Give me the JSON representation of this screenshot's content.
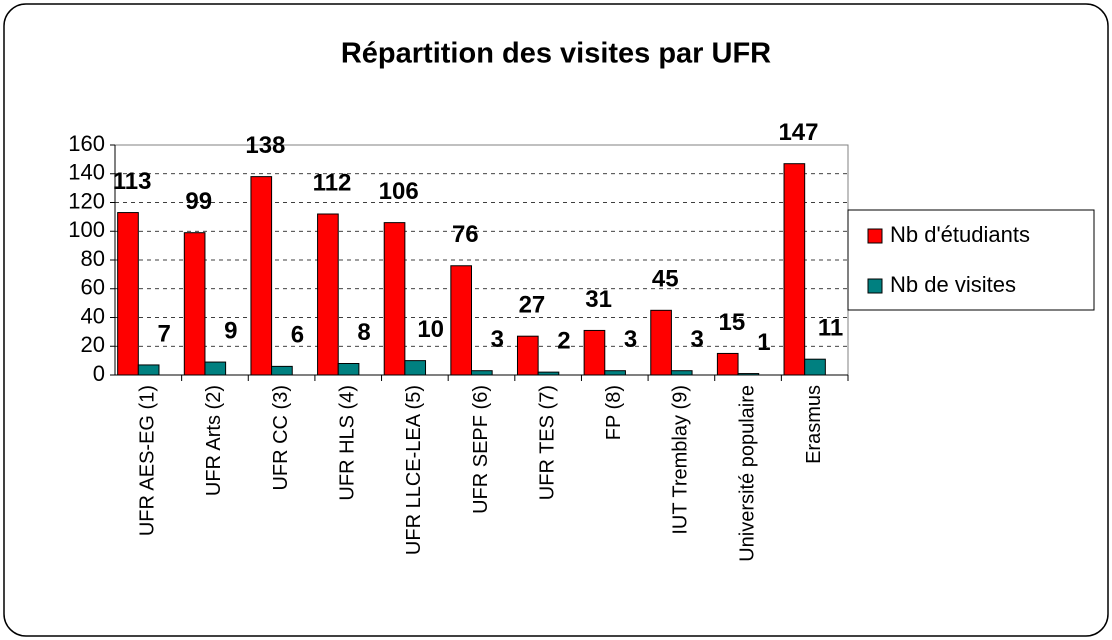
{
  "chart_data": {
    "type": "bar",
    "title": "Répartition des visites par UFR",
    "categories": [
      "UFR AES-EG (1)",
      "UFR Arts (2)",
      "UFR CC (3)",
      "UFR HLS (4)",
      "UFR LLCE-LEA (5)",
      "UFR SEPF (6)",
      "UFR TES (7)",
      "FP (8)",
      "IUT Tremblay (9)",
      "Université populaire",
      "Erasmus"
    ],
    "series": [
      {
        "name": "Nb d'étudiants",
        "color": "#ff0000",
        "values": [
          113,
          99,
          138,
          112,
          106,
          76,
          27,
          31,
          45,
          15,
          147
        ]
      },
      {
        "name": "Nb de visites",
        "color": "#008080",
        "values": [
          7,
          9,
          6,
          8,
          10,
          3,
          2,
          3,
          3,
          1,
          11
        ]
      }
    ],
    "ylim": [
      0,
      160
    ],
    "yticks": [
      0,
      20,
      40,
      60,
      80,
      100,
      120,
      140,
      160
    ],
    "grid": true,
    "legend": "right"
  }
}
